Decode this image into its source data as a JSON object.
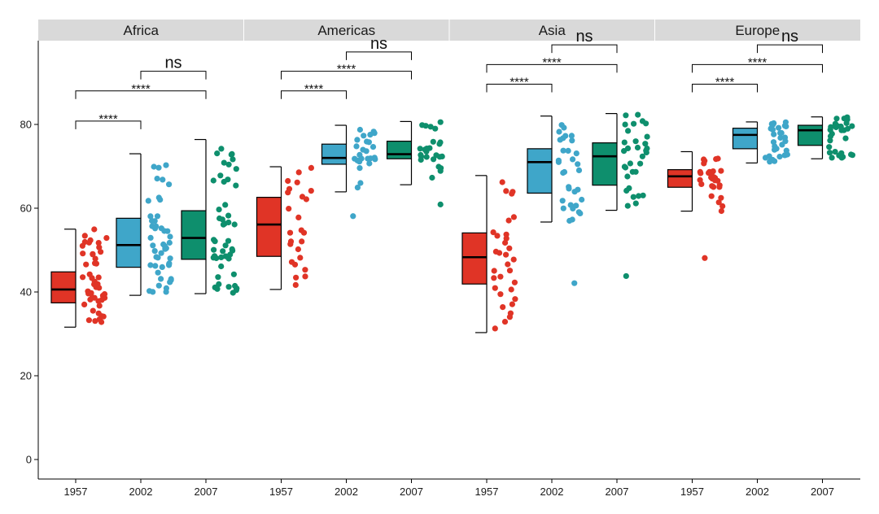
{
  "chart_data": {
    "type": "boxplot",
    "facets": [
      "Africa",
      "Americas",
      "Asia",
      "Europe"
    ],
    "categories": [
      "1957",
      "2002",
      "2007"
    ],
    "colors": {
      "1957": "#e03426",
      "2002": "#3fa6c9",
      "2007": "#0e8f6d"
    },
    "y_ticks": [
      0,
      20,
      40,
      60,
      80
    ],
    "ylim": [
      -2,
      97
    ],
    "xlabel": "",
    "ylabel": "",
    "boxes": {
      "Africa": [
        {
          "year": "1957",
          "whisker_low": 31.6,
          "q1": 37.4,
          "median": 40.6,
          "q3": 44.8,
          "whisker_high": 55.0,
          "outliers": []
        },
        {
          "year": "2002",
          "whisker_low": 39.2,
          "q1": 45.9,
          "median": 51.2,
          "q3": 57.6,
          "whisker_high": 73.0,
          "outliers": []
        },
        {
          "year": "2007",
          "whisker_low": 39.6,
          "q1": 47.8,
          "median": 52.9,
          "q3": 59.4,
          "whisker_high": 76.4,
          "outliers": []
        }
      ],
      "Americas": [
        {
          "year": "1957",
          "whisker_low": 40.6,
          "q1": 48.5,
          "median": 56.1,
          "q3": 62.6,
          "whisker_high": 69.9,
          "outliers": []
        },
        {
          "year": "2002",
          "whisker_low": 63.9,
          "q1": 70.5,
          "median": 72.0,
          "q3": 75.3,
          "whisker_high": 79.8,
          "outliers": [
            58.1
          ]
        },
        {
          "year": "2007",
          "whisker_low": 65.6,
          "q1": 71.8,
          "median": 72.9,
          "q3": 76.0,
          "whisker_high": 80.7,
          "outliers": [
            60.9
          ]
        }
      ],
      "Asia": [
        {
          "year": "1957",
          "whisker_low": 30.3,
          "q1": 41.9,
          "median": 48.3,
          "q3": 54.1,
          "whisker_high": 67.8,
          "outliers": []
        },
        {
          "year": "2002",
          "whisker_low": 56.7,
          "q1": 63.6,
          "median": 71.0,
          "q3": 74.2,
          "whisker_high": 82.0,
          "outliers": [
            42.1
          ]
        },
        {
          "year": "2007",
          "whisker_low": 59.5,
          "q1": 65.5,
          "median": 72.4,
          "q3": 75.6,
          "whisker_high": 82.6,
          "outliers": [
            43.8
          ]
        }
      ],
      "Europe": [
        {
          "year": "1957",
          "whisker_low": 59.3,
          "q1": 65.0,
          "median": 67.6,
          "q3": 69.2,
          "whisker_high": 73.5,
          "outliers": [
            48.1
          ]
        },
        {
          "year": "2002",
          "whisker_low": 70.8,
          "q1": 74.2,
          "median": 77.5,
          "q3": 79.1,
          "whisker_high": 80.6,
          "outliers": []
        },
        {
          "year": "2007",
          "whisker_low": 71.8,
          "q1": 75.0,
          "median": 78.6,
          "q3": 79.8,
          "whisker_high": 81.8,
          "outliers": []
        }
      ]
    },
    "comparisons": [
      {
        "facet": "Africa",
        "group1": "1957",
        "group2": "2002",
        "y": 80.8,
        "label": "****"
      },
      {
        "facet": "Africa",
        "group1": "1957",
        "group2": "2007",
        "y": 88.0,
        "label": "****"
      },
      {
        "facet": "Africa",
        "group1": "2002",
        "group2": "2007",
        "y": 92.7,
        "label": "ns"
      },
      {
        "facet": "Americas",
        "group1": "1957",
        "group2": "2002",
        "y": 88.0,
        "label": "****"
      },
      {
        "facet": "Americas",
        "group1": "1957",
        "group2": "2007",
        "y": 92.7,
        "label": "****"
      },
      {
        "facet": "Americas",
        "group1": "2002",
        "group2": "2007",
        "y": 97.3,
        "label": "ns"
      },
      {
        "facet": "Asia",
        "group1": "1957",
        "group2": "2002",
        "y": 89.6,
        "label": "****"
      },
      {
        "facet": "Asia",
        "group1": "1957",
        "group2": "2007",
        "y": 94.3,
        "label": "****"
      },
      {
        "facet": "Asia",
        "group1": "2002",
        "group2": "2007",
        "y": 99.0,
        "label": "ns"
      },
      {
        "facet": "Europe",
        "group1": "1957",
        "group2": "2002",
        "y": 89.6,
        "label": "****"
      },
      {
        "facet": "Europe",
        "group1": "1957",
        "group2": "2007",
        "y": 94.3,
        "label": "****"
      },
      {
        "facet": "Europe",
        "group1": "2002",
        "group2": "2007",
        "y": 99.0,
        "label": "ns"
      }
    ]
  }
}
